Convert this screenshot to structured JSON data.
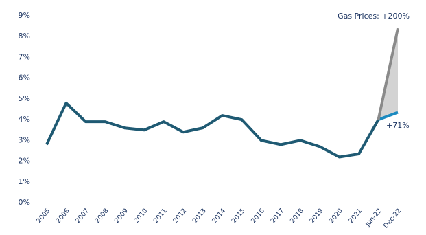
{
  "chart_data": {
    "type": "line",
    "categories": [
      "2005",
      "2006",
      "2007",
      "2008",
      "2009",
      "2010",
      "2011",
      "2012",
      "2013",
      "2014",
      "2015",
      "2016",
      "2017",
      "2018",
      "2019",
      "2020",
      "2021",
      "Jun-22",
      "Dec-22"
    ],
    "series": [
      {
        "color": "#1f5a73",
        "values": [
          2.8,
          4.8,
          3.9,
          3.9,
          3.6,
          3.5,
          3.9,
          3.4,
          3.6,
          4.2,
          4.0,
          3.0,
          2.8,
          3.0,
          2.7,
          2.2,
          2.35,
          4.0,
          null
        ]
      },
      {
        "color": "#1b8ac0",
        "values": [
          null,
          null,
          null,
          null,
          null,
          null,
          null,
          null,
          null,
          null,
          null,
          null,
          null,
          null,
          null,
          null,
          null,
          4.0,
          4.35
        ]
      },
      {
        "color": "#8a8a8a",
        "values": [
          null,
          null,
          null,
          null,
          null,
          null,
          null,
          null,
          null,
          null,
          null,
          null,
          null,
          null,
          null,
          null,
          null,
          4.0,
          8.4
        ]
      }
    ],
    "shade": "#d3d3d3",
    "ylim": [
      0,
      9
    ],
    "yticks": [
      {
        "value": 0,
        "label": "0%"
      },
      {
        "value": 1,
        "label": "1%"
      },
      {
        "value": 2,
        "label": "2%"
      },
      {
        "value": 3,
        "label": "3%"
      },
      {
        "value": 4,
        "label": "4%"
      },
      {
        "value": 5,
        "label": "5%"
      },
      {
        "value": 6,
        "label": "6%"
      },
      {
        "value": 7,
        "label": "7%"
      },
      {
        "value": 8,
        "label": "8%"
      },
      {
        "value": 9,
        "label": "9%"
      }
    ],
    "annotations": [
      "Gas Prices: +200%",
      "+71%"
    ]
  }
}
